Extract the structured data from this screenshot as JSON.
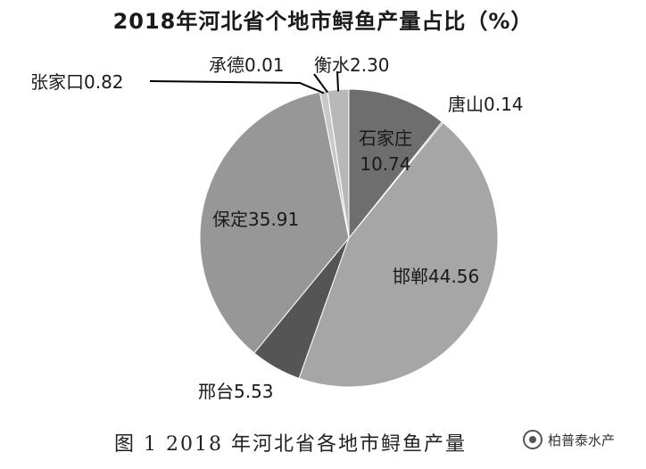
{
  "chart_data": {
    "type": "pie",
    "title": "2018年河北省个地市鲟鱼产量占比（%）",
    "slices": [
      {
        "name": "石家庄",
        "value": 10.74,
        "color": "#6e6e6e"
      },
      {
        "name": "唐山",
        "value": 0.14,
        "color": "#5a5a5a"
      },
      {
        "name": "邯郸",
        "value": 44.56,
        "color": "#a6a6a6"
      },
      {
        "name": "邢台",
        "value": 5.53,
        "color": "#555555"
      },
      {
        "name": "保定",
        "value": 35.91,
        "color": "#979797"
      },
      {
        "name": "张家口",
        "value": 0.82,
        "color": "#c8c8c8"
      },
      {
        "name": "承德",
        "value": 0.01,
        "color": "#8a8a8a"
      },
      {
        "name": "衡水",
        "value": 2.3,
        "color": "#b8b8b8"
      }
    ],
    "labels": [
      {
        "text": "石家庄",
        "sub": "10.74"
      },
      {
        "text": "唐山0.14"
      },
      {
        "text": "邯郸44.56"
      },
      {
        "text": "邢台5.53"
      },
      {
        "text": "保定35.91"
      },
      {
        "text": "张家口0.82"
      },
      {
        "text": "承德0.01"
      },
      {
        "text": "衡水2.30"
      }
    ]
  },
  "caption": "图 1   2018 年河北省各地市鲟鱼产量",
  "watermark": "柏普泰水产",
  "watermark_icon": "wechat-account-icon"
}
